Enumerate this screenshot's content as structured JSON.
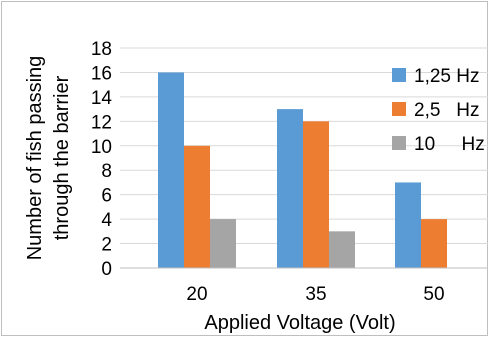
{
  "chart_data": {
    "type": "bar",
    "title": "",
    "xlabel": "Applied Voltage (Volt)",
    "ylabel_lines": [
      "Number of fish passing",
      "through the barrier"
    ],
    "categories": [
      "20",
      "35",
      "50"
    ],
    "series": [
      {
        "name": "1,25 Hz",
        "color": "#5b9bd5",
        "values": [
          16,
          13,
          7
        ]
      },
      {
        "name": "2,5   Hz",
        "color": "#ed7d31",
        "values": [
          10,
          12,
          4
        ]
      },
      {
        "name": "10     Hz",
        "color": "#a5a5a5",
        "values": [
          4,
          3,
          0
        ]
      }
    ],
    "ylim": [
      0,
      18
    ],
    "yticks": [
      "0",
      "2",
      "4",
      "6",
      "8",
      "10",
      "12",
      "14",
      "16",
      "18"
    ],
    "grid": true,
    "legend_position": "right"
  }
}
